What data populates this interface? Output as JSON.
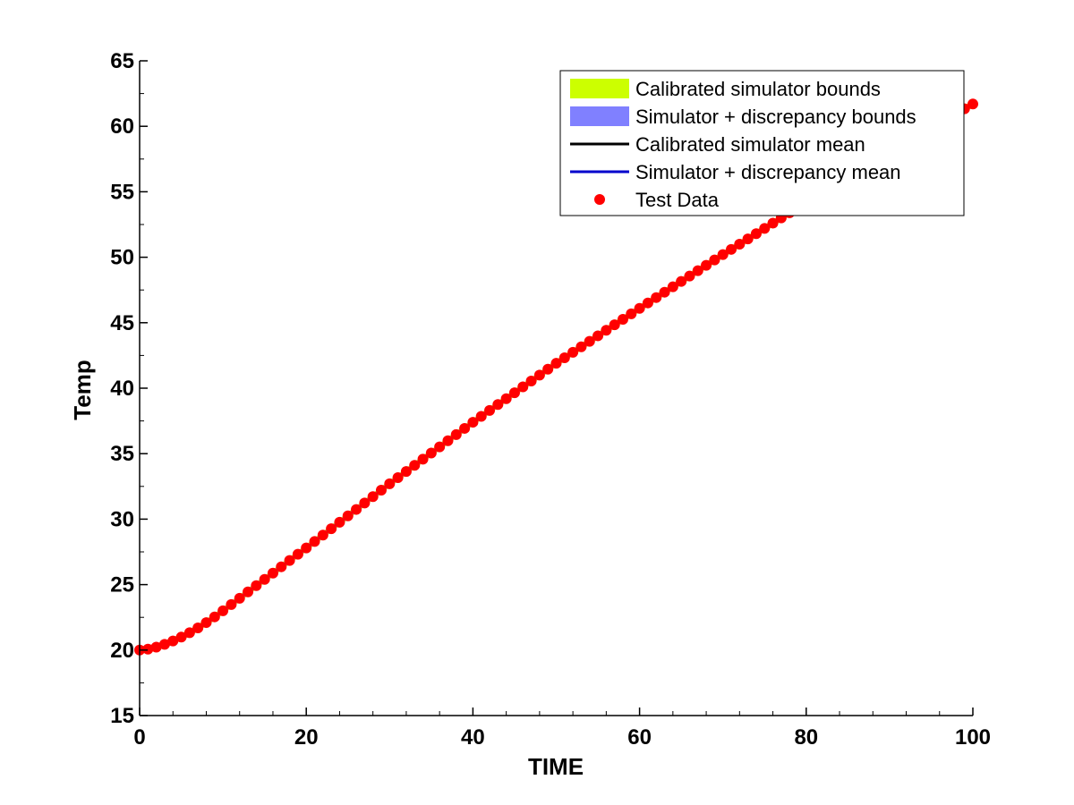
{
  "chart_data": {
    "type": "line",
    "title": "",
    "xlabel": "TIME",
    "ylabel": "Temp",
    "xlim": [
      0,
      100
    ],
    "ylim": [
      15,
      65
    ],
    "x_ticks": [
      "0",
      "20",
      "40",
      "60",
      "80",
      "100"
    ],
    "y_ticks": [
      "15",
      "20",
      "25",
      "30",
      "35",
      "40",
      "45",
      "50",
      "55",
      "60",
      "65"
    ],
    "grid": false,
    "legend_position": "top-right",
    "legend": [
      {
        "label": "Calibrated simulator bounds",
        "kind": "patch",
        "color": "#ccff00"
      },
      {
        "label": "Simulator + discrepancy bounds",
        "kind": "patch",
        "color": "#8080ff"
      },
      {
        "label": "Calibrated simulator mean",
        "kind": "line",
        "color": "#000000"
      },
      {
        "label": "Simulator + discrepancy mean",
        "kind": "line",
        "color": "#0000cc"
      },
      {
        "label": "Test Data",
        "kind": "marker",
        "color": "#ff0000"
      }
    ],
    "series": [
      {
        "name": "Test Data",
        "x": [
          0,
          10,
          20,
          30,
          40,
          50,
          60,
          70,
          80,
          90,
          100
        ],
        "y": [
          20.0,
          23.0,
          27.8,
          32.7,
          37.4,
          41.9,
          46.1,
          50.2,
          54.2,
          58.1,
          61.7
        ]
      }
    ]
  }
}
